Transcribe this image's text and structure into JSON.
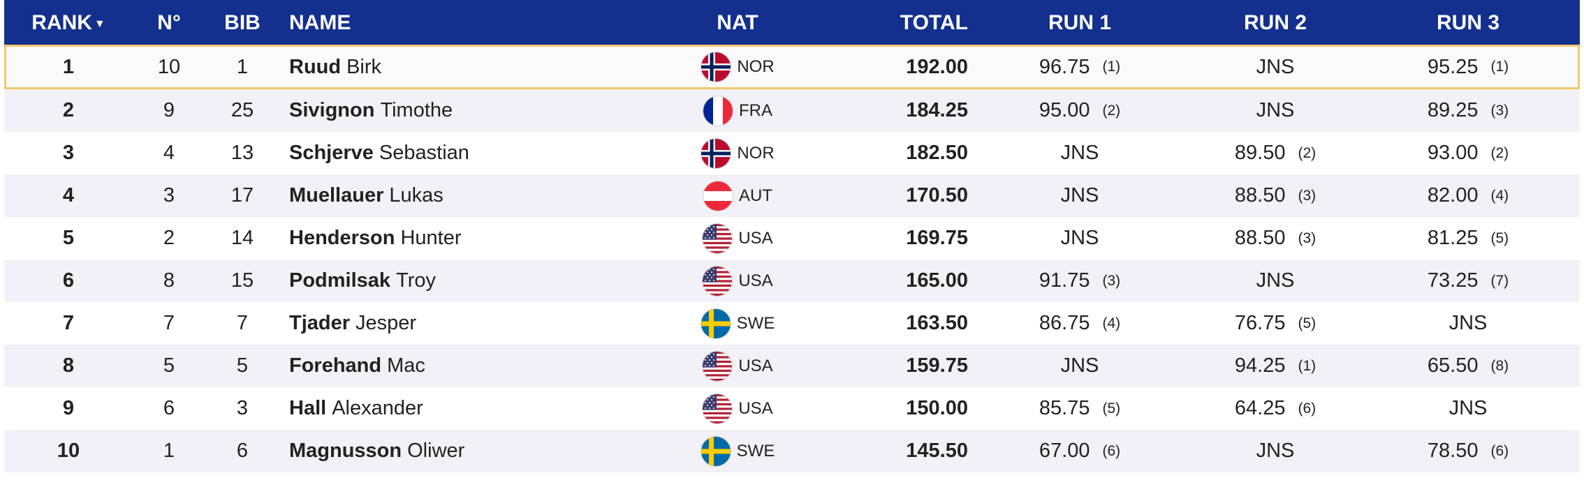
{
  "headers": {
    "rank": "RANK",
    "no": "N°",
    "bib": "BIB",
    "name": "NAME",
    "nat": "NAT",
    "total": "TOTAL",
    "run1": "RUN 1",
    "run2": "RUN 2",
    "run3": "RUN 3",
    "sort_indicator": "▼"
  },
  "rows": [
    {
      "rank": "1",
      "no": "10",
      "bib": "1",
      "last": "Ruud",
      "first": "Birk",
      "nat": "NOR",
      "flag": "norway-flag-icon",
      "total": "192.00",
      "run1": {
        "score": "96.75",
        "pos": "(1)"
      },
      "run2": {
        "score": "JNS",
        "pos": ""
      },
      "run3": {
        "score": "95.25",
        "pos": "(1)"
      }
    },
    {
      "rank": "2",
      "no": "9",
      "bib": "25",
      "last": "Sivignon",
      "first": "Timothe",
      "nat": "FRA",
      "flag": "france-flag-icon",
      "total": "184.25",
      "run1": {
        "score": "95.00",
        "pos": "(2)"
      },
      "run2": {
        "score": "JNS",
        "pos": ""
      },
      "run3": {
        "score": "89.25",
        "pos": "(3)"
      }
    },
    {
      "rank": "3",
      "no": "4",
      "bib": "13",
      "last": "Schjerve",
      "first": "Sebastian",
      "nat": "NOR",
      "flag": "norway-flag-icon",
      "total": "182.50",
      "run1": {
        "score": "JNS",
        "pos": ""
      },
      "run2": {
        "score": "89.50",
        "pos": "(2)"
      },
      "run3": {
        "score": "93.00",
        "pos": "(2)"
      }
    },
    {
      "rank": "4",
      "no": "3",
      "bib": "17",
      "last": "Muellauer",
      "first": "Lukas",
      "nat": "AUT",
      "flag": "austria-flag-icon",
      "total": "170.50",
      "run1": {
        "score": "JNS",
        "pos": ""
      },
      "run2": {
        "score": "88.50",
        "pos": "(3)"
      },
      "run3": {
        "score": "82.00",
        "pos": "(4)"
      }
    },
    {
      "rank": "5",
      "no": "2",
      "bib": "14",
      "last": "Henderson",
      "first": "Hunter",
      "nat": "USA",
      "flag": "usa-flag-icon",
      "total": "169.75",
      "run1": {
        "score": "JNS",
        "pos": ""
      },
      "run2": {
        "score": "88.50",
        "pos": "(3)"
      },
      "run3": {
        "score": "81.25",
        "pos": "(5)"
      }
    },
    {
      "rank": "6",
      "no": "8",
      "bib": "15",
      "last": "Podmilsak",
      "first": "Troy",
      "nat": "USA",
      "flag": "usa-flag-icon",
      "total": "165.00",
      "run1": {
        "score": "91.75",
        "pos": "(3)"
      },
      "run2": {
        "score": "JNS",
        "pos": ""
      },
      "run3": {
        "score": "73.25",
        "pos": "(7)"
      }
    },
    {
      "rank": "7",
      "no": "7",
      "bib": "7",
      "last": "Tjader",
      "first": "Jesper",
      "nat": "SWE",
      "flag": "sweden-flag-icon",
      "total": "163.50",
      "run1": {
        "score": "86.75",
        "pos": "(4)"
      },
      "run2": {
        "score": "76.75",
        "pos": "(5)"
      },
      "run3": {
        "score": "JNS",
        "pos": ""
      }
    },
    {
      "rank": "8",
      "no": "5",
      "bib": "5",
      "last": "Forehand",
      "first": "Mac",
      "nat": "USA",
      "flag": "usa-flag-icon",
      "total": "159.75",
      "run1": {
        "score": "JNS",
        "pos": ""
      },
      "run2": {
        "score": "94.25",
        "pos": "(1)"
      },
      "run3": {
        "score": "65.50",
        "pos": "(8)"
      }
    },
    {
      "rank": "9",
      "no": "6",
      "bib": "3",
      "last": "Hall",
      "first": "Alexander",
      "nat": "USA",
      "flag": "usa-flag-icon",
      "total": "150.00",
      "run1": {
        "score": "85.75",
        "pos": "(5)"
      },
      "run2": {
        "score": "64.25",
        "pos": "(6)"
      },
      "run3": {
        "score": "JNS",
        "pos": ""
      }
    },
    {
      "rank": "10",
      "no": "1",
      "bib": "6",
      "last": "Magnusson",
      "first": "Oliwer",
      "nat": "SWE",
      "flag": "sweden-flag-icon",
      "total": "145.50",
      "run1": {
        "score": "67.00",
        "pos": "(6)"
      },
      "run2": {
        "score": "JNS",
        "pos": ""
      },
      "run3": {
        "score": "78.50",
        "pos": "(6)"
      }
    }
  ],
  "colors": {
    "header_bg": "#13308f",
    "highlight_border": "#f2c86a",
    "alt_row": "#f1f1f7"
  }
}
